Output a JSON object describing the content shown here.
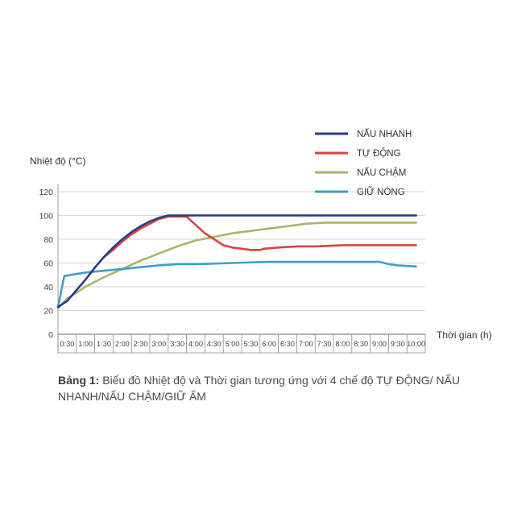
{
  "chart_data": {
    "type": "line",
    "ylabel": "Nhiệt độ (°C)",
    "xlabel": "Thời gian (h)",
    "ylim": [
      0,
      120
    ],
    "yticks": [
      0,
      20,
      40,
      60,
      80,
      100,
      120
    ],
    "categories": [
      "0:30",
      "1:00",
      "1:30",
      "2:00",
      "2:30",
      "3:00",
      "3:30",
      "4:00",
      "4:30",
      "5:00",
      "5:30",
      "6:00",
      "6:30",
      "7:00",
      "7:30",
      "8:00",
      "8:30",
      "9:00",
      "9:30",
      "10:00"
    ],
    "grid": "horizontal",
    "legend_position": "top-right",
    "series": [
      {
        "name": "NẤU NHANH",
        "color": "#2b3a8f",
        "points": [
          [
            0.25,
            23
          ],
          [
            0.5,
            28
          ],
          [
            0.75,
            37
          ],
          [
            1.0,
            46
          ],
          [
            1.25,
            56
          ],
          [
            1.5,
            65
          ],
          [
            1.75,
            73
          ],
          [
            2.0,
            80
          ],
          [
            2.25,
            86
          ],
          [
            2.5,
            91
          ],
          [
            2.75,
            95
          ],
          [
            3.0,
            98
          ],
          [
            3.25,
            100
          ],
          [
            3.5,
            100
          ],
          [
            4.0,
            100
          ],
          [
            5.0,
            100
          ],
          [
            6.0,
            100
          ],
          [
            7.0,
            100
          ],
          [
            8.0,
            100
          ],
          [
            9.0,
            100
          ],
          [
            10.0,
            100
          ]
        ]
      },
      {
        "name": "TỰ ĐỘNG",
        "color": "#d9443f",
        "points": [
          [
            1.5,
            65
          ],
          [
            1.75,
            71
          ],
          [
            2.0,
            78
          ],
          [
            2.25,
            84
          ],
          [
            2.5,
            89
          ],
          [
            2.75,
            93
          ],
          [
            3.0,
            97
          ],
          [
            3.25,
            99
          ],
          [
            3.5,
            99
          ],
          [
            3.75,
            99
          ],
          [
            4.0,
            92
          ],
          [
            4.25,
            85
          ],
          [
            4.5,
            80
          ],
          [
            4.75,
            75
          ],
          [
            5.0,
            73
          ],
          [
            5.25,
            72
          ],
          [
            5.5,
            71
          ],
          [
            5.75,
            71
          ],
          [
            5.85,
            72
          ],
          [
            6.25,
            73
          ],
          [
            6.75,
            74
          ],
          [
            7.25,
            74
          ],
          [
            8.0,
            75
          ],
          [
            9.0,
            75
          ],
          [
            10.0,
            75
          ]
        ]
      },
      {
        "name": "NẤU CHẬM",
        "color": "#a8b56a",
        "points": [
          [
            0.25,
            22
          ],
          [
            0.5,
            30
          ],
          [
            1.0,
            40
          ],
          [
            1.5,
            48
          ],
          [
            2.0,
            55
          ],
          [
            2.5,
            62
          ],
          [
            3.0,
            68
          ],
          [
            3.5,
            74
          ],
          [
            4.0,
            79
          ],
          [
            4.5,
            82
          ],
          [
            5.0,
            85
          ],
          [
            5.5,
            87
          ],
          [
            6.0,
            89
          ],
          [
            6.5,
            91
          ],
          [
            7.0,
            93
          ],
          [
            7.5,
            94
          ],
          [
            8.0,
            94
          ],
          [
            9.0,
            94
          ],
          [
            10.0,
            94
          ]
        ]
      },
      {
        "name": "GIỮ NÓNG",
        "color": "#3f9fc7",
        "points": [
          [
            0.25,
            23
          ],
          [
            0.42,
            49
          ],
          [
            1.0,
            52
          ],
          [
            2.0,
            55
          ],
          [
            3.0,
            58
          ],
          [
            3.5,
            59
          ],
          [
            4.0,
            59
          ],
          [
            5.0,
            60
          ],
          [
            6.0,
            61
          ],
          [
            7.0,
            61
          ],
          [
            8.0,
            61
          ],
          [
            9.0,
            61
          ],
          [
            9.25,
            59
          ],
          [
            9.5,
            58
          ],
          [
            10.0,
            57
          ]
        ]
      }
    ]
  },
  "caption": {
    "label": "Bảng 1:",
    "text": " Biểu đồ Nhiệt độ và Thời gian tương ứng với 4 chế độ TỰ ĐỘNG/ NẤU NHANH/NẤU CHẬM/GIỮ ẤM"
  }
}
